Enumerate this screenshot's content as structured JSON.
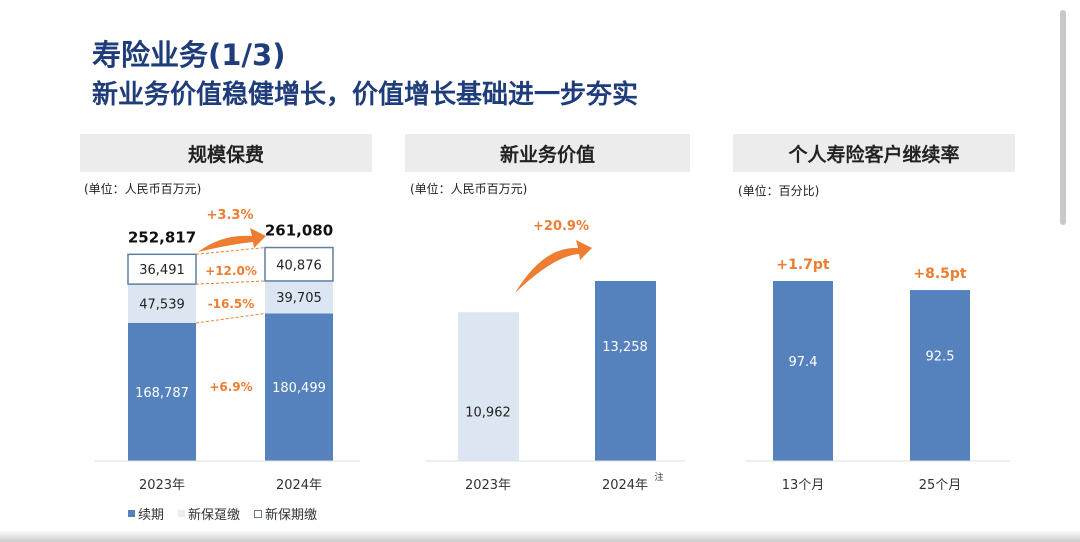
{
  "title": "寿险业务(1/3)",
  "subtitle": "新业务价值稳健增长，价值增长基础进一步夯实",
  "colors": {
    "renewal": "#5581bd",
    "single": "#dce6f2",
    "regular_border": "#5f7f9f",
    "growth": "#ed7d31",
    "title": "#1f3d7a"
  },
  "chart_data": [
    {
      "type": "bar",
      "stacked": true,
      "title": "规模保费",
      "unit": "(单位：人民币百万元)",
      "categories": [
        "2023年",
        "2024年"
      ],
      "series": [
        {
          "name": "续期",
          "values": [
            168787,
            180499
          ],
          "labels": [
            "168,787",
            "180,499"
          ]
        },
        {
          "name": "新保趸缴",
          "values": [
            47539,
            39705
          ],
          "labels": [
            "47,539",
            "39,705"
          ]
        },
        {
          "name": "新保期缴",
          "values": [
            36491,
            40876
          ],
          "labels": [
            "36,491",
            "40,876"
          ]
        }
      ],
      "totals": [
        "252,817",
        "261,080"
      ],
      "total_growth": "+3.3%",
      "series_growth": [
        "+6.9%",
        "-16.5%",
        "+12.0%"
      ]
    },
    {
      "type": "bar",
      "title": "新业务价值",
      "unit": "(单位：人民币百万元)",
      "categories": [
        "2023年",
        "2024年"
      ],
      "values": [
        10962,
        13258
      ],
      "labels": [
        "10,962",
        "13,258"
      ],
      "growth": "+20.9%",
      "note": "注"
    },
    {
      "type": "bar",
      "title": "个人寿险客户继续率",
      "unit": "(单位：百分比)",
      "categories": [
        "13个月",
        "25个月"
      ],
      "values": [
        97.4,
        92.5
      ],
      "labels": [
        "97.4",
        "92.5"
      ],
      "growth": [
        "+1.7pt",
        "+8.5pt"
      ]
    }
  ]
}
